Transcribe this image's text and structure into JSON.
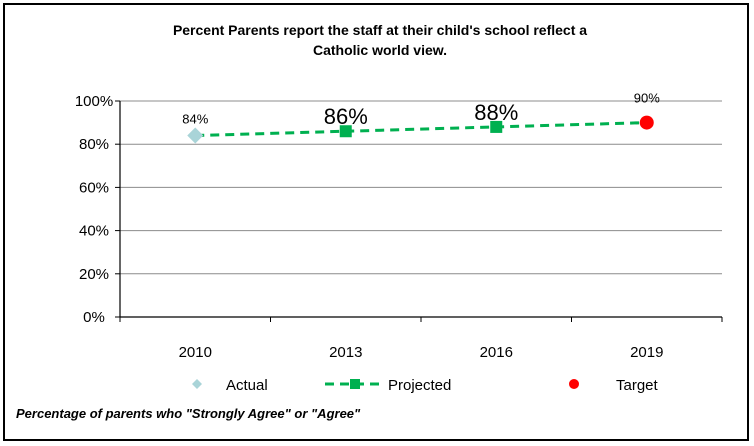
{
  "chart_data": {
    "type": "line",
    "title_line1": "Percent Parents report the staff at their child's school reflect a",
    "title_line2": "Catholic world view.",
    "categories": [
      "2010",
      "2013",
      "2016",
      "2019"
    ],
    "yticks": [
      "0%",
      "20%",
      "40%",
      "60%",
      "80%",
      "100%"
    ],
    "ylim": [
      0,
      100
    ],
    "grid": true,
    "legend_position": "bottom",
    "series": [
      {
        "name": "Actual",
        "values": [
          84,
          null,
          null,
          null
        ],
        "labels": [
          "84%",
          "",
          "",
          ""
        ],
        "color": "#a9d4d8",
        "marker": "diamond"
      },
      {
        "name": "Projected",
        "values": [
          84,
          86,
          88,
          90
        ],
        "labels": [
          "",
          "86%",
          "88%",
          ""
        ],
        "color": "#00b050",
        "marker": "square",
        "line": "dashed"
      },
      {
        "name": "Target",
        "values": [
          null,
          null,
          null,
          90
        ],
        "labels": [
          "",
          "",
          "",
          "90%"
        ],
        "color": "#ff0000",
        "marker": "circle"
      }
    ],
    "footnote": "Percentage of parents who \"Strongly Agree\" or \"Agree\""
  }
}
